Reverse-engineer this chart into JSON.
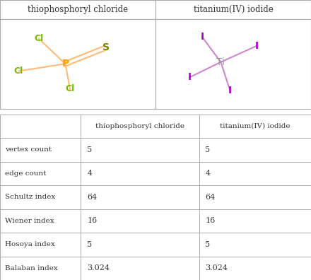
{
  "col_headers": [
    "",
    "thiophosphoryl chloride",
    "titanium(IV) iodide"
  ],
  "row_labels": [
    "vertex count",
    "edge count",
    "Schultz index",
    "Wiener index",
    "Hosoya index",
    "Balaban index"
  ],
  "values": [
    [
      "5",
      "5"
    ],
    [
      "4",
      "4"
    ],
    [
      "64",
      "64"
    ],
    [
      "16",
      "16"
    ],
    [
      "5",
      "5"
    ],
    [
      "3.024",
      "3.024"
    ]
  ],
  "mol1_title": "thiophosphoryl chloride",
  "mol2_title": "titanium(IV) iodide",
  "background": "#ffffff",
  "grid_color": "#aaaaaa",
  "text_color": "#333333",
  "P_color": "#FFA500",
  "S_color": "#808000",
  "Cl_color": "#7AB800",
  "Ti_color": "#999999",
  "I_color": "#AA00CC",
  "bond_color": "#FFBB77",
  "bond_color2": "#CC88CC",
  "fig_width": 4.4,
  "fig_height": 3.96,
  "dpi": 100
}
